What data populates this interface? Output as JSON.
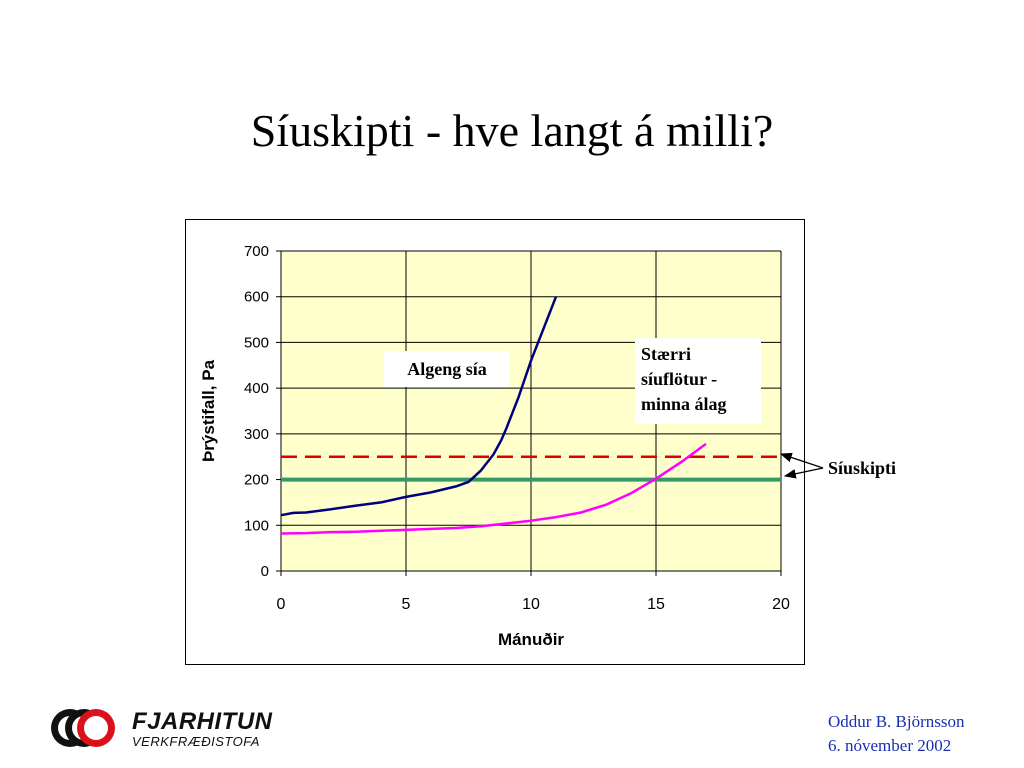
{
  "slide": {
    "title": "Síuskipti - hve langt á milli?",
    "logo_name": "FJARHITUN",
    "logo_sub": "VERKFRÆÐISTOFA",
    "footer_author": "Oddur B. Björnsson",
    "footer_date": "6. nóvember 2002",
    "side_label": "Síuskipti"
  },
  "chart_data": {
    "type": "line",
    "title": "",
    "xlabel": "Mánuðir",
    "ylabel": "Þrýstifall, Pa",
    "xlim": [
      0,
      20
    ],
    "ylim": [
      0,
      700
    ],
    "xticks": [
      0,
      5,
      10,
      15,
      20
    ],
    "yticks": [
      0,
      100,
      200,
      300,
      400,
      500,
      600,
      700
    ],
    "grid": true,
    "plot_background": "#ffffcc",
    "series": [
      {
        "color": "#000080",
        "points": [
          [
            0,
            122
          ],
          [
            0.5,
            127
          ],
          [
            1,
            128
          ],
          [
            2,
            135
          ],
          [
            3,
            143
          ],
          [
            4,
            150
          ],
          [
            5,
            162
          ],
          [
            6,
            172
          ],
          [
            7,
            185
          ],
          [
            7.5,
            195
          ],
          [
            8,
            220
          ],
          [
            8.5,
            255
          ],
          [
            8.8,
            285
          ],
          [
            9,
            310
          ],
          [
            9.5,
            380
          ],
          [
            10,
            460
          ],
          [
            10.5,
            530
          ],
          [
            11,
            600
          ]
        ]
      },
      {
        "color": "#ff00ff",
        "points": [
          [
            0,
            82
          ],
          [
            1,
            83
          ],
          [
            2,
            85
          ],
          [
            3,
            86
          ],
          [
            4,
            88
          ],
          [
            5,
            90
          ],
          [
            6,
            92
          ],
          [
            7,
            94
          ],
          [
            8,
            98
          ],
          [
            9,
            104
          ],
          [
            10,
            110
          ],
          [
            11,
            118
          ],
          [
            12,
            128
          ],
          [
            13,
            145
          ],
          [
            14,
            170
          ],
          [
            15,
            202
          ],
          [
            16,
            238
          ],
          [
            17,
            278
          ]
        ]
      }
    ],
    "reference_lines": [
      {
        "y": 250,
        "color": "#e00000",
        "style": "dashed"
      },
      {
        "y": 200,
        "color": "#339966",
        "style": "solid"
      }
    ],
    "annotations": [
      {
        "text": "Algeng sía"
      },
      {
        "lines": [
          "Stærri",
          "síuflötur -",
          "minna álag"
        ]
      }
    ]
  }
}
